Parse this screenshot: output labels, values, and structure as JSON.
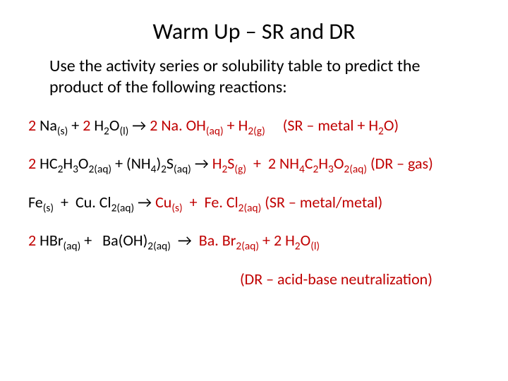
{
  "title": "Warm Up – SR and DR",
  "intro": "Use the activity series or solubility table to predict the product of the following reactions:",
  "eq1": {
    "r_coef1": "2",
    "r1a": "Na",
    "r1b": "(s)",
    "plus1": "+",
    "r_coef2": "2",
    "r2a": "H",
    "r2b": "2",
    "r2c": "O",
    "r2d": "(l)",
    "arrow": "→",
    "p_coef1": "2",
    "p1a": "Na. OH",
    "p1b": "(aq)",
    "plus2": "+",
    "p2a": "H",
    "p2b": "2(g)",
    "note_a": "(SR – metal + H",
    "note_b": "2",
    "note_c": "O)"
  },
  "eq2": {
    "r_coef1": "2",
    "r1a": "HC",
    "r1b": "2",
    "r1c": "H",
    "r1d": "3",
    "r1e": "O",
    "r1f": "2(aq)",
    "plus1": "+",
    "r2a": "(NH",
    "r2b": "4",
    "r2c": ")",
    "r2d": "2",
    "r2e": "S",
    "r2f": "(aq)",
    "arrow": "→",
    "p1a": "H",
    "p1b": "2",
    "p1c": "S",
    "p1d": "(g)",
    "plus2": "+",
    "p_coef2": "2",
    "p2a": "NH",
    "p2b": "4",
    "p2c": "C",
    "p2d": "2",
    "p2e": "H",
    "p2f": "3",
    "p2g": "O",
    "p2h": "2(aq)",
    "note": "(DR – gas)"
  },
  "eq3": {
    "r1a": "Fe",
    "r1b": "(s)",
    "plus1": "+",
    "r2a": "Cu. Cl",
    "r2b": "2(aq)",
    "arrow": "→",
    "p1a": "Cu",
    "p1b": "(s)",
    "plus2": "+",
    "p2a": "Fe. Cl",
    "p2b": "2(aq)",
    "note": "(SR – metal/metal)"
  },
  "eq4": {
    "r_coef1": "2",
    "r1a": "HBr",
    "r1b": "(aq)",
    "plus1": "+",
    "r2a": "Ba(OH)",
    "r2b": "2(aq)",
    "arrow": "→",
    "p1a": "Ba. Br",
    "p1b": "2(aq)",
    "plus2": "+",
    "p_coef2": "2",
    "p2a": "H",
    "p2b": "2",
    "p2c": "O",
    "p2d": "(l)"
  },
  "note4": "(DR – acid-base neutralization)",
  "colors": {
    "answer": "#c00000",
    "text": "#000000",
    "background": "#ffffff"
  },
  "fonts": {
    "title_size": 32,
    "intro_size": 24,
    "body_size": 22,
    "family": "Calibri"
  }
}
